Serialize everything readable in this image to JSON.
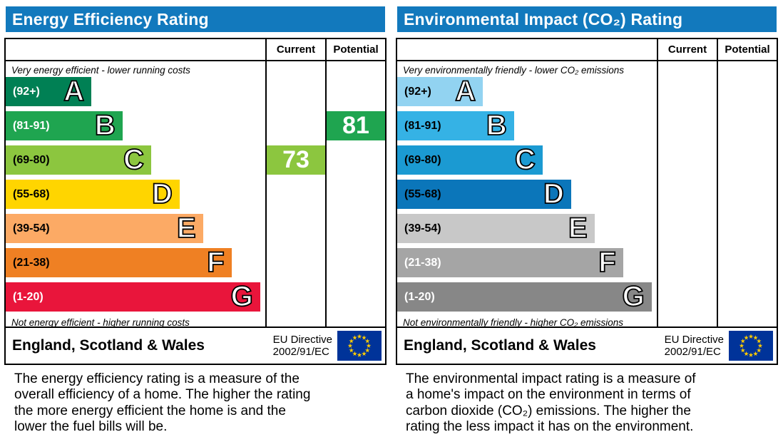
{
  "accent_color": "#1279bd",
  "panels": [
    {
      "title": "Energy Efficiency Rating",
      "columns": {
        "current": "Current",
        "potential": "Potential"
      },
      "top_caption": "Very energy efficient - lower running costs",
      "bottom_caption": "Not energy efficient - higher running costs",
      "bands": [
        {
          "letter": "A",
          "range": "(92+)",
          "color": "#008054",
          "text": "#ffffff",
          "width_pct": 33
        },
        {
          "letter": "B",
          "range": "(81-91)",
          "color": "#1fa550",
          "text": "#ffffff",
          "width_pct": 45
        },
        {
          "letter": "C",
          "range": "(69-80)",
          "color": "#8cc63f",
          "text": "#000000",
          "width_pct": 56
        },
        {
          "letter": "D",
          "range": "(55-68)",
          "color": "#ffd500",
          "text": "#000000",
          "width_pct": 67
        },
        {
          "letter": "E",
          "range": "(39-54)",
          "color": "#fcaa65",
          "text": "#000000",
          "width_pct": 76
        },
        {
          "letter": "F",
          "range": "(21-38)",
          "color": "#ef8023",
          "text": "#000000",
          "width_pct": 87
        },
        {
          "letter": "G",
          "range": "(1-20)",
          "color": "#e9153b",
          "text": "#ffffff",
          "width_pct": 98
        }
      ],
      "ratings": [
        {
          "column": "current",
          "value": "73",
          "band": "C",
          "row": 2,
          "color": "#8cc63f"
        },
        {
          "column": "potential",
          "value": "81",
          "band": "B",
          "row": 1,
          "color": "#1fa550"
        }
      ],
      "footer": {
        "region": "England, Scotland & Wales",
        "directive_line1": "EU Directive",
        "directive_line2": "2002/91/EC"
      },
      "description_lines": [
        "The energy efficiency rating is a measure of the",
        "overall efficiency of a home. The higher the rating",
        "the more energy efficient the home is and the",
        "lower the fuel bills will be."
      ]
    },
    {
      "title": "Environmental Impact (CO₂) Rating",
      "columns": {
        "current": "Current",
        "potential": "Potential"
      },
      "top_caption": "Very environmentally friendly - lower CO₂ emissions",
      "bottom_caption": "Not environmentally friendly - higher CO₂ emissions",
      "bands": [
        {
          "letter": "A",
          "range": "(92+)",
          "color": "#92d3f1",
          "text": "#000000",
          "width_pct": 33
        },
        {
          "letter": "B",
          "range": "(81-91)",
          "color": "#35b2e5",
          "text": "#000000",
          "width_pct": 45
        },
        {
          "letter": "C",
          "range": "(69-80)",
          "color": "#1b9ad2",
          "text": "#000000",
          "width_pct": 56
        },
        {
          "letter": "D",
          "range": "(55-68)",
          "color": "#0b76ba",
          "text": "#000000",
          "width_pct": 67
        },
        {
          "letter": "E",
          "range": "(39-54)",
          "color": "#c8c8c8",
          "text": "#000000",
          "width_pct": 76
        },
        {
          "letter": "F",
          "range": "(21-38)",
          "color": "#a5a5a5",
          "text": "#ffffff",
          "width_pct": 87
        },
        {
          "letter": "G",
          "range": "(1-20)",
          "color": "#878787",
          "text": "#ffffff",
          "width_pct": 98
        }
      ],
      "ratings": [],
      "footer": {
        "region": "England, Scotland & Wales",
        "directive_line1": "EU Directive",
        "directive_line2": "2002/91/EC"
      },
      "description_lines": [
        "The environmental impact rating is a measure of",
        "a home's impact on the environment in terms of",
        "carbon dioxide (CO₂) emissions. The higher the",
        "rating the less impact it has on the environment."
      ]
    }
  ],
  "chart_data": [
    {
      "type": "bar",
      "title": "Energy Efficiency Rating",
      "categories": [
        "A (92+)",
        "B (81-91)",
        "C (69-80)",
        "D (55-68)",
        "E (39-54)",
        "F (21-38)",
        "G (1-20)"
      ],
      "values": [
        33,
        45,
        56,
        67,
        76,
        87,
        98
      ],
      "value_meaning": "relative bar length, % of chart width",
      "current_rating": 73,
      "current_band": "C",
      "potential_rating": 81,
      "potential_band": "B",
      "top_caption": "Very energy efficient - lower running costs",
      "bottom_caption": "Not energy efficient - higher running costs",
      "footer": "England, Scotland & Wales — EU Directive 2002/91/EC"
    },
    {
      "type": "bar",
      "title": "Environmental Impact (CO₂) Rating",
      "categories": [
        "A (92+)",
        "B (81-91)",
        "C (69-80)",
        "D (55-68)",
        "E (39-54)",
        "F (21-38)",
        "G (1-20)"
      ],
      "values": [
        33,
        45,
        56,
        67,
        76,
        87,
        98
      ],
      "value_meaning": "relative bar length, % of chart width",
      "current_rating": null,
      "potential_rating": null,
      "top_caption": "Very environmentally friendly - lower CO₂ emissions",
      "bottom_caption": "Not environmentally friendly - higher CO₂ emissions",
      "footer": "England, Scotland & Wales — EU Directive 2002/91/EC"
    }
  ]
}
